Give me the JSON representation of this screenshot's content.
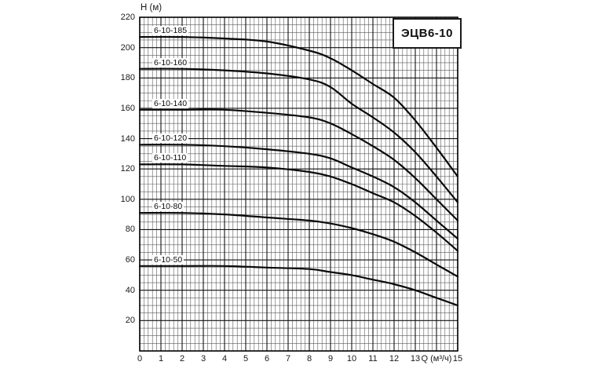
{
  "title_box": {
    "label": "ЭЦВ6-10"
  },
  "axes": {
    "y_title": "Н (м)",
    "x_title": "Q (м³/ч)",
    "y_ticks": [
      220,
      200,
      180,
      160,
      140,
      120,
      100,
      80,
      60,
      40,
      20
    ],
    "x_ticks": [
      {
        "q": 0,
        "label": "0"
      },
      {
        "q": 1,
        "label": "1"
      },
      {
        "q": 2,
        "label": "2"
      },
      {
        "q": 3,
        "label": "3"
      },
      {
        "q": 4,
        "label": "4"
      },
      {
        "q": 5,
        "label": "5"
      },
      {
        "q": 6,
        "label": "6"
      },
      {
        "q": 7,
        "label": "7"
      },
      {
        "q": 8,
        "label": "8"
      },
      {
        "q": 9,
        "label": "9"
      },
      {
        "q": 10,
        "label": "10"
      },
      {
        "q": 11,
        "label": "11"
      },
      {
        "q": 12,
        "label": "12"
      },
      {
        "q": 13,
        "label": "13"
      },
      {
        "q": 14,
        "label": "Q (м³/ч)"
      },
      {
        "q": 15,
        "label": "15"
      }
    ]
  },
  "colors": {
    "curve": "#0a0a0a",
    "grid_minor": "#5a5a5a",
    "grid_major": "#111111",
    "frame": "#000000",
    "background": "#ffffff"
  },
  "chart_data": {
    "type": "line",
    "title": "ЭЦВ6-10",
    "xlabel": "Q (м³/ч)",
    "ylabel": "Н (м)",
    "xlim": [
      0,
      15
    ],
    "ylim": [
      0,
      220
    ],
    "x_major_step": 1,
    "x_minor_step": 0.2,
    "y_major_step": 20,
    "y_minor_step": 5,
    "grid": true,
    "legend_position": "labels-on-curves",
    "series": [
      {
        "name": "6-10-185",
        "points": [
          [
            0,
            207
          ],
          [
            2,
            207
          ],
          [
            4,
            206
          ],
          [
            6,
            204
          ],
          [
            8,
            198
          ],
          [
            9,
            193
          ],
          [
            10,
            185
          ],
          [
            11,
            176
          ],
          [
            12,
            167
          ],
          [
            13,
            152
          ],
          [
            14,
            134
          ],
          [
            15,
            115
          ]
        ]
      },
      {
        "name": "6-10-160",
        "points": [
          [
            0,
            186
          ],
          [
            2,
            186
          ],
          [
            4,
            185
          ],
          [
            6,
            183
          ],
          [
            8,
            179
          ],
          [
            9,
            174
          ],
          [
            10,
            163
          ],
          [
            11,
            154
          ],
          [
            12,
            144
          ],
          [
            13,
            131
          ],
          [
            14,
            115
          ],
          [
            15,
            98
          ]
        ]
      },
      {
        "name": "6-10-140",
        "points": [
          [
            0,
            159
          ],
          [
            2,
            159
          ],
          [
            4,
            159
          ],
          [
            6,
            157
          ],
          [
            8,
            154
          ],
          [
            9,
            150
          ],
          [
            10,
            143
          ],
          [
            11,
            135
          ],
          [
            12,
            126
          ],
          [
            13,
            114
          ],
          [
            14,
            100
          ],
          [
            15,
            86
          ]
        ]
      },
      {
        "name": "6-10-120",
        "points": [
          [
            0,
            136
          ],
          [
            2,
            136
          ],
          [
            4,
            135
          ],
          [
            6,
            133
          ],
          [
            8,
            130
          ],
          [
            9,
            127
          ],
          [
            10,
            121
          ],
          [
            11,
            115
          ],
          [
            12,
            108
          ],
          [
            13,
            98
          ],
          [
            14,
            86
          ],
          [
            15,
            74
          ]
        ]
      },
      {
        "name": "6-10-110",
        "points": [
          [
            0,
            123
          ],
          [
            2,
            123
          ],
          [
            4,
            122
          ],
          [
            6,
            121
          ],
          [
            8,
            118
          ],
          [
            9,
            115
          ],
          [
            10,
            110
          ],
          [
            11,
            104
          ],
          [
            12,
            98
          ],
          [
            13,
            89
          ],
          [
            14,
            78
          ],
          [
            15,
            66
          ]
        ]
      },
      {
        "name": "6-10-80",
        "points": [
          [
            0,
            91
          ],
          [
            2,
            91
          ],
          [
            4,
            90
          ],
          [
            6,
            88
          ],
          [
            8,
            86
          ],
          [
            9,
            84
          ],
          [
            10,
            81
          ],
          [
            11,
            77
          ],
          [
            12,
            72
          ],
          [
            13,
            65
          ],
          [
            14,
            57
          ],
          [
            15,
            49
          ]
        ]
      },
      {
        "name": "6-10-50",
        "points": [
          [
            0,
            56
          ],
          [
            2,
            56
          ],
          [
            4,
            56
          ],
          [
            6,
            55
          ],
          [
            8,
            54
          ],
          [
            9,
            52
          ],
          [
            10,
            50
          ],
          [
            11,
            47
          ],
          [
            12,
            44
          ],
          [
            13,
            40
          ],
          [
            14,
            35
          ],
          [
            15,
            30
          ]
        ]
      }
    ]
  }
}
